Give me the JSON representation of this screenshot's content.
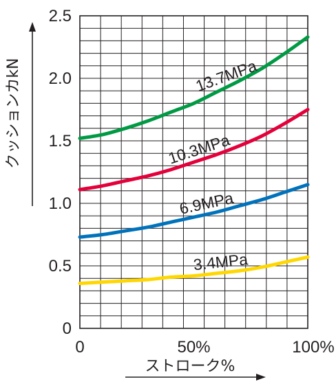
{
  "chart_data": {
    "type": "line",
    "xlabel": "ストローク%",
    "ylabel": "クッションカkN",
    "xlim": [
      0,
      100
    ],
    "ylim": [
      0,
      2.5
    ],
    "x_ticks": [
      "0",
      "50%",
      "100%"
    ],
    "y_ticks": [
      "0",
      "0.5",
      "1.0",
      "1.5",
      "2.0",
      "2.5"
    ],
    "grid": true,
    "x": [
      0,
      10,
      20,
      30,
      40,
      50,
      60,
      70,
      80,
      90,
      100
    ],
    "series": [
      {
        "name": "13.7MPa",
        "color": "#009a44",
        "values": [
          1.52,
          1.55,
          1.6,
          1.66,
          1.73,
          1.8,
          1.89,
          1.98,
          2.08,
          2.2,
          2.33
        ]
      },
      {
        "name": "10.3MPa",
        "color": "#e4003a",
        "values": [
          1.11,
          1.14,
          1.18,
          1.22,
          1.27,
          1.33,
          1.39,
          1.46,
          1.54,
          1.64,
          1.75
        ]
      },
      {
        "name": "6.9MPa",
        "color": "#0072bc",
        "values": [
          0.73,
          0.75,
          0.78,
          0.81,
          0.85,
          0.89,
          0.93,
          0.98,
          1.03,
          1.09,
          1.15
        ]
      },
      {
        "name": "3.4MPa",
        "color": "#ffd700",
        "values": [
          0.36,
          0.37,
          0.38,
          0.39,
          0.41,
          0.42,
          0.44,
          0.46,
          0.49,
          0.53,
          0.57
        ]
      }
    ]
  }
}
